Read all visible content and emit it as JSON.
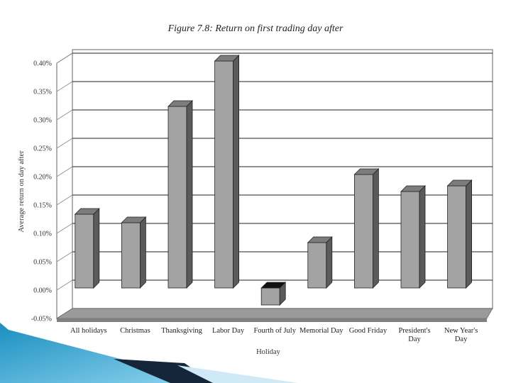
{
  "chart_data": {
    "type": "bar",
    "title": "Figure 7.8: Return on first trading day after",
    "xlabel": "Holiday",
    "ylabel": "Average return on day after",
    "categories": [
      [
        "All holidays"
      ],
      [
        "Christmas"
      ],
      [
        "Thanksgiving"
      ],
      [
        "Labor Day"
      ],
      [
        "Fourth of July"
      ],
      [
        "Memorial Day"
      ],
      [
        "Good Friday"
      ],
      [
        "President's",
        "Day"
      ],
      [
        "New Year's",
        "Day"
      ]
    ],
    "series": [
      {
        "values": [
          0.13,
          0.115,
          0.32,
          0.4,
          -0.03,
          0.08,
          0.2,
          0.17,
          0.18
        ]
      }
    ],
    "yticks": [
      "0.40%",
      "0.35%",
      "0.30%",
      "0.25%",
      "0.20%",
      "0.15%",
      "0.10%",
      "0.05%",
      "0.00%",
      "-0.05%"
    ],
    "ylim": [
      -0.05,
      0.4
    ],
    "grid": true,
    "colors": {
      "bar_front": "#a3a3a3",
      "bar_side": "#5a5a5a",
      "bar_top": "#7c7c7c",
      "floor": "#808080"
    }
  }
}
